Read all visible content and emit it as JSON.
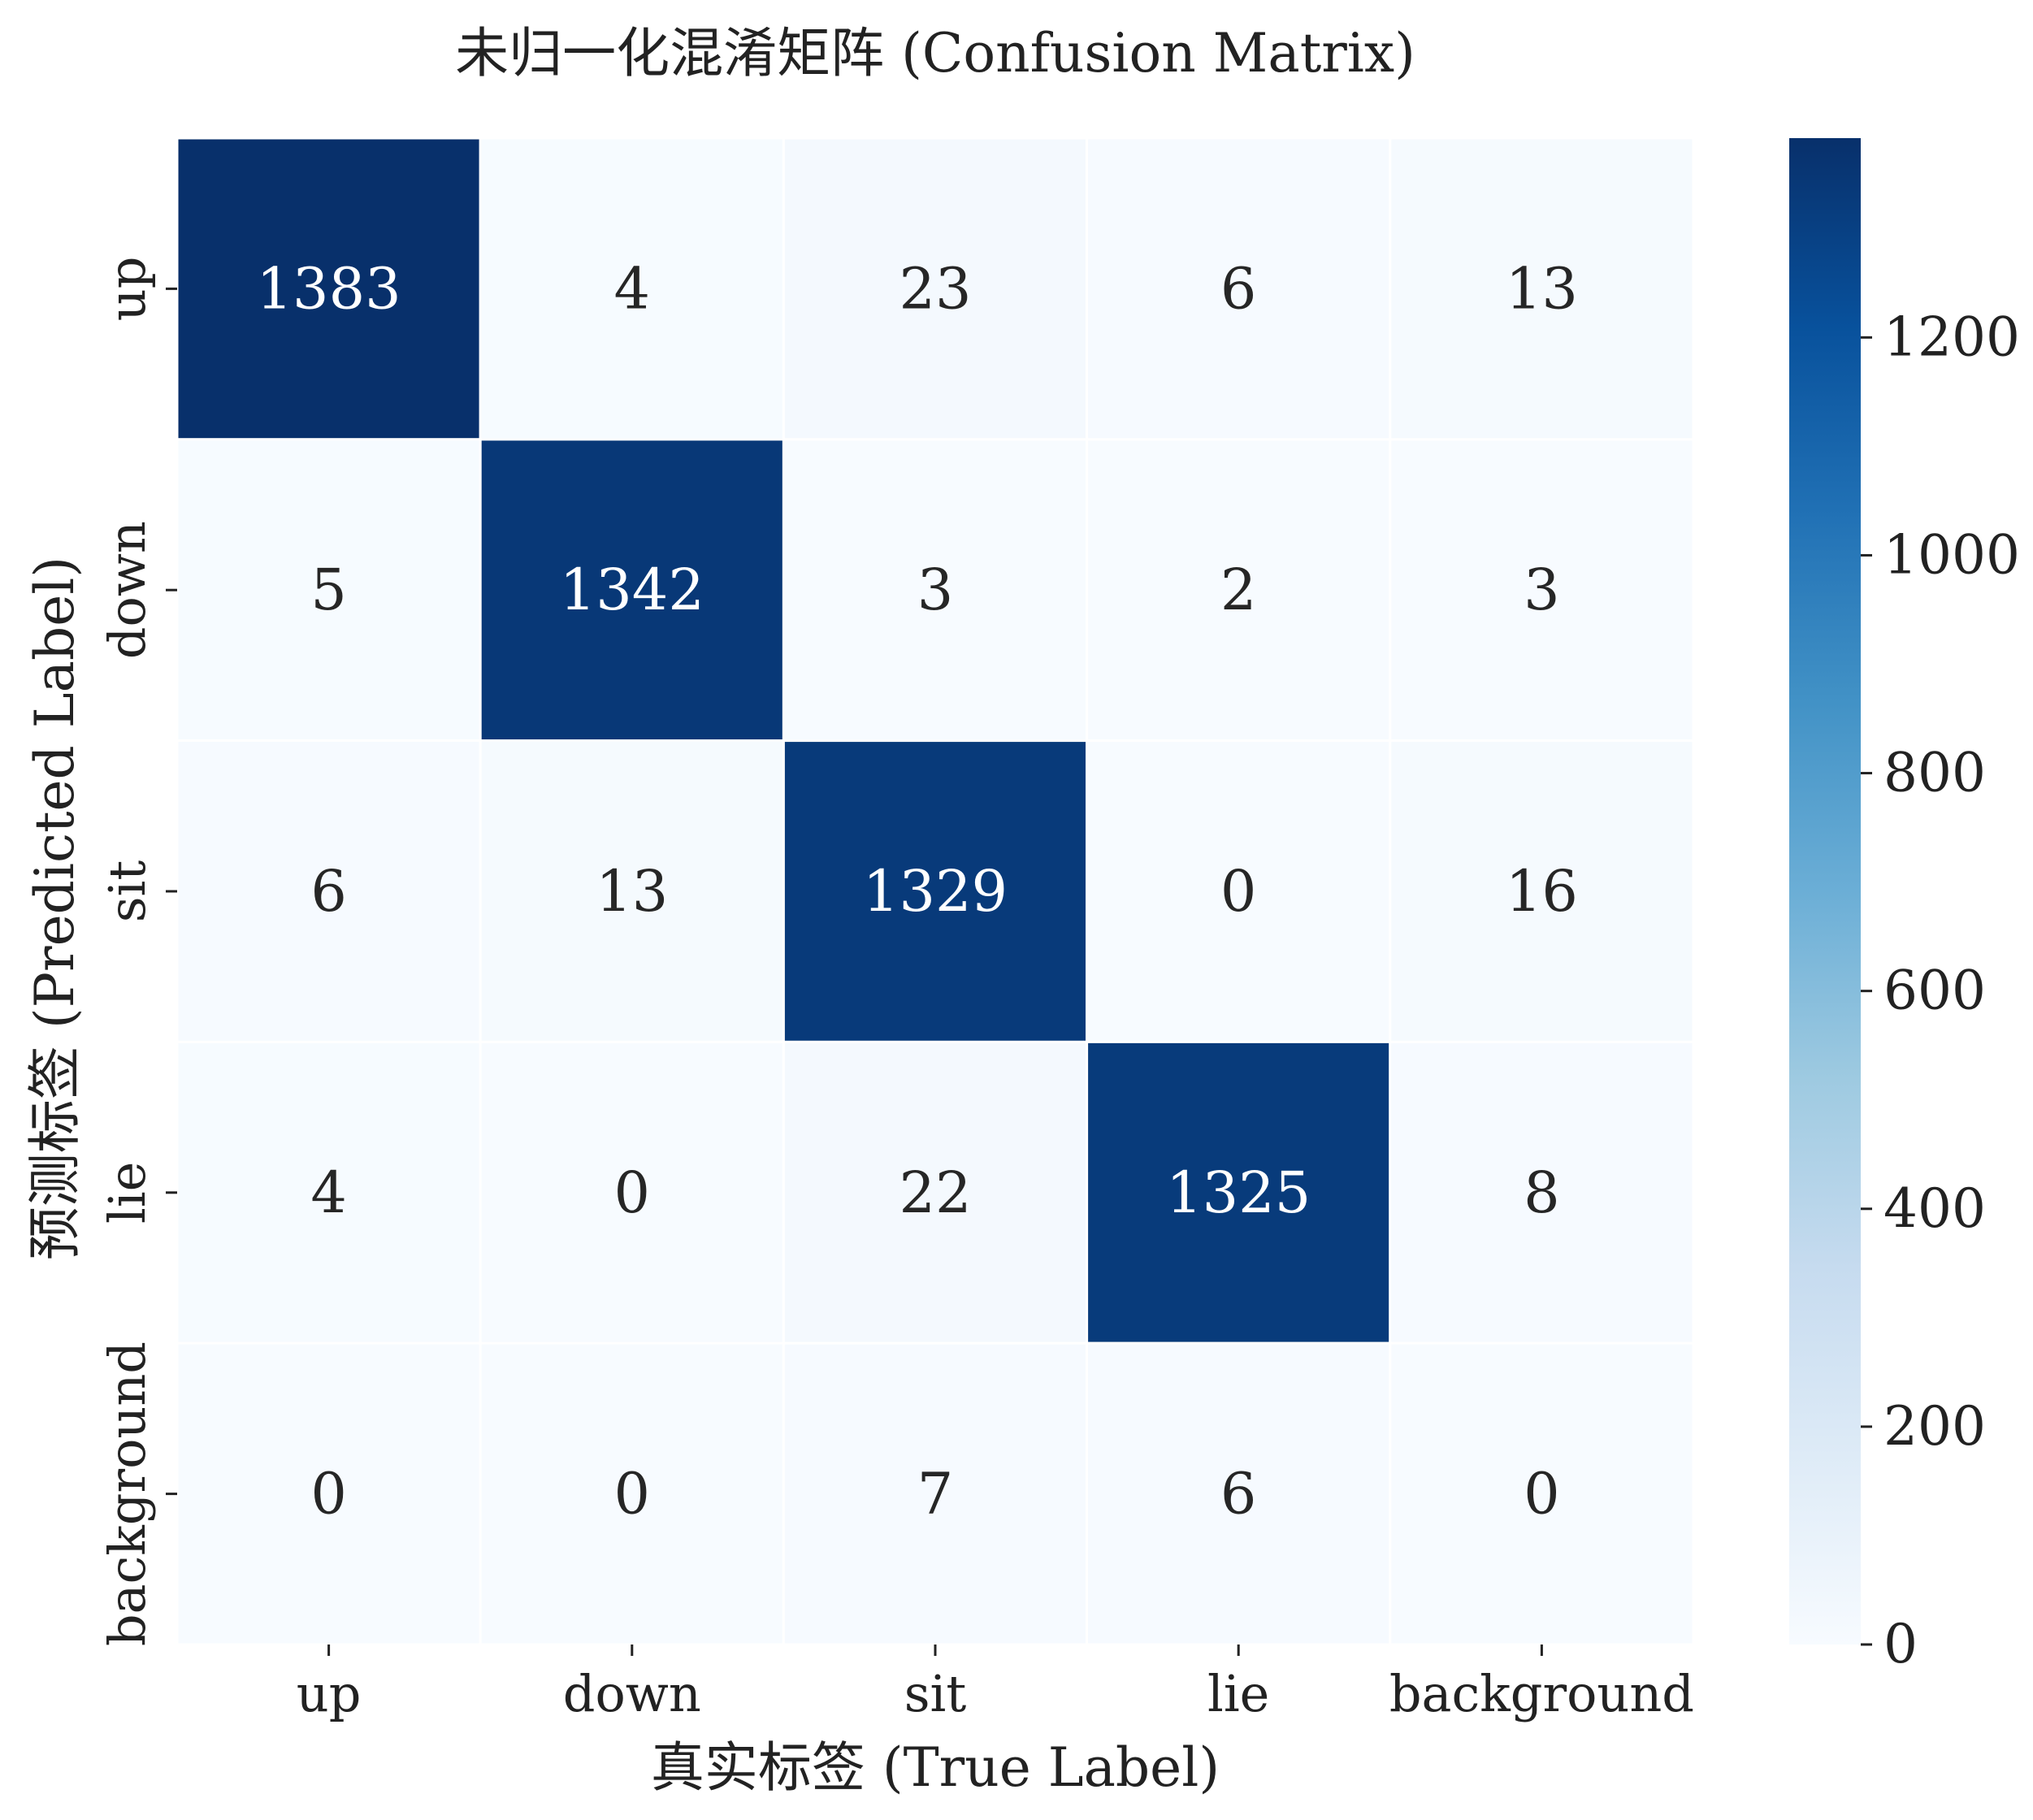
{
  "chart_data": {
    "type": "heatmap",
    "title": "未归一化混淆矩阵 (Confusion Matrix)",
    "xlabel": "真实标签 (True Label)",
    "ylabel": "预测标签 (Predicted Label)",
    "x_categories": [
      "up",
      "down",
      "sit",
      "lie",
      "background"
    ],
    "y_categories": [
      "up",
      "down",
      "sit",
      "lie",
      "background"
    ],
    "values": [
      [
        1383,
        4,
        23,
        6,
        13
      ],
      [
        5,
        1342,
        3,
        2,
        3
      ],
      [
        6,
        13,
        1329,
        0,
        16
      ],
      [
        4,
        0,
        22,
        1325,
        8
      ],
      [
        0,
        0,
        7,
        6,
        0
      ]
    ],
    "colorbar": {
      "colormap": "Blues",
      "range": [
        0,
        1383
      ],
      "ticks": [
        0,
        200,
        400,
        600,
        800,
        1000,
        1200
      ],
      "low_color": "#f7fbff",
      "high_color": "#08306b"
    },
    "grid": false,
    "legend": "colorbar-right"
  }
}
